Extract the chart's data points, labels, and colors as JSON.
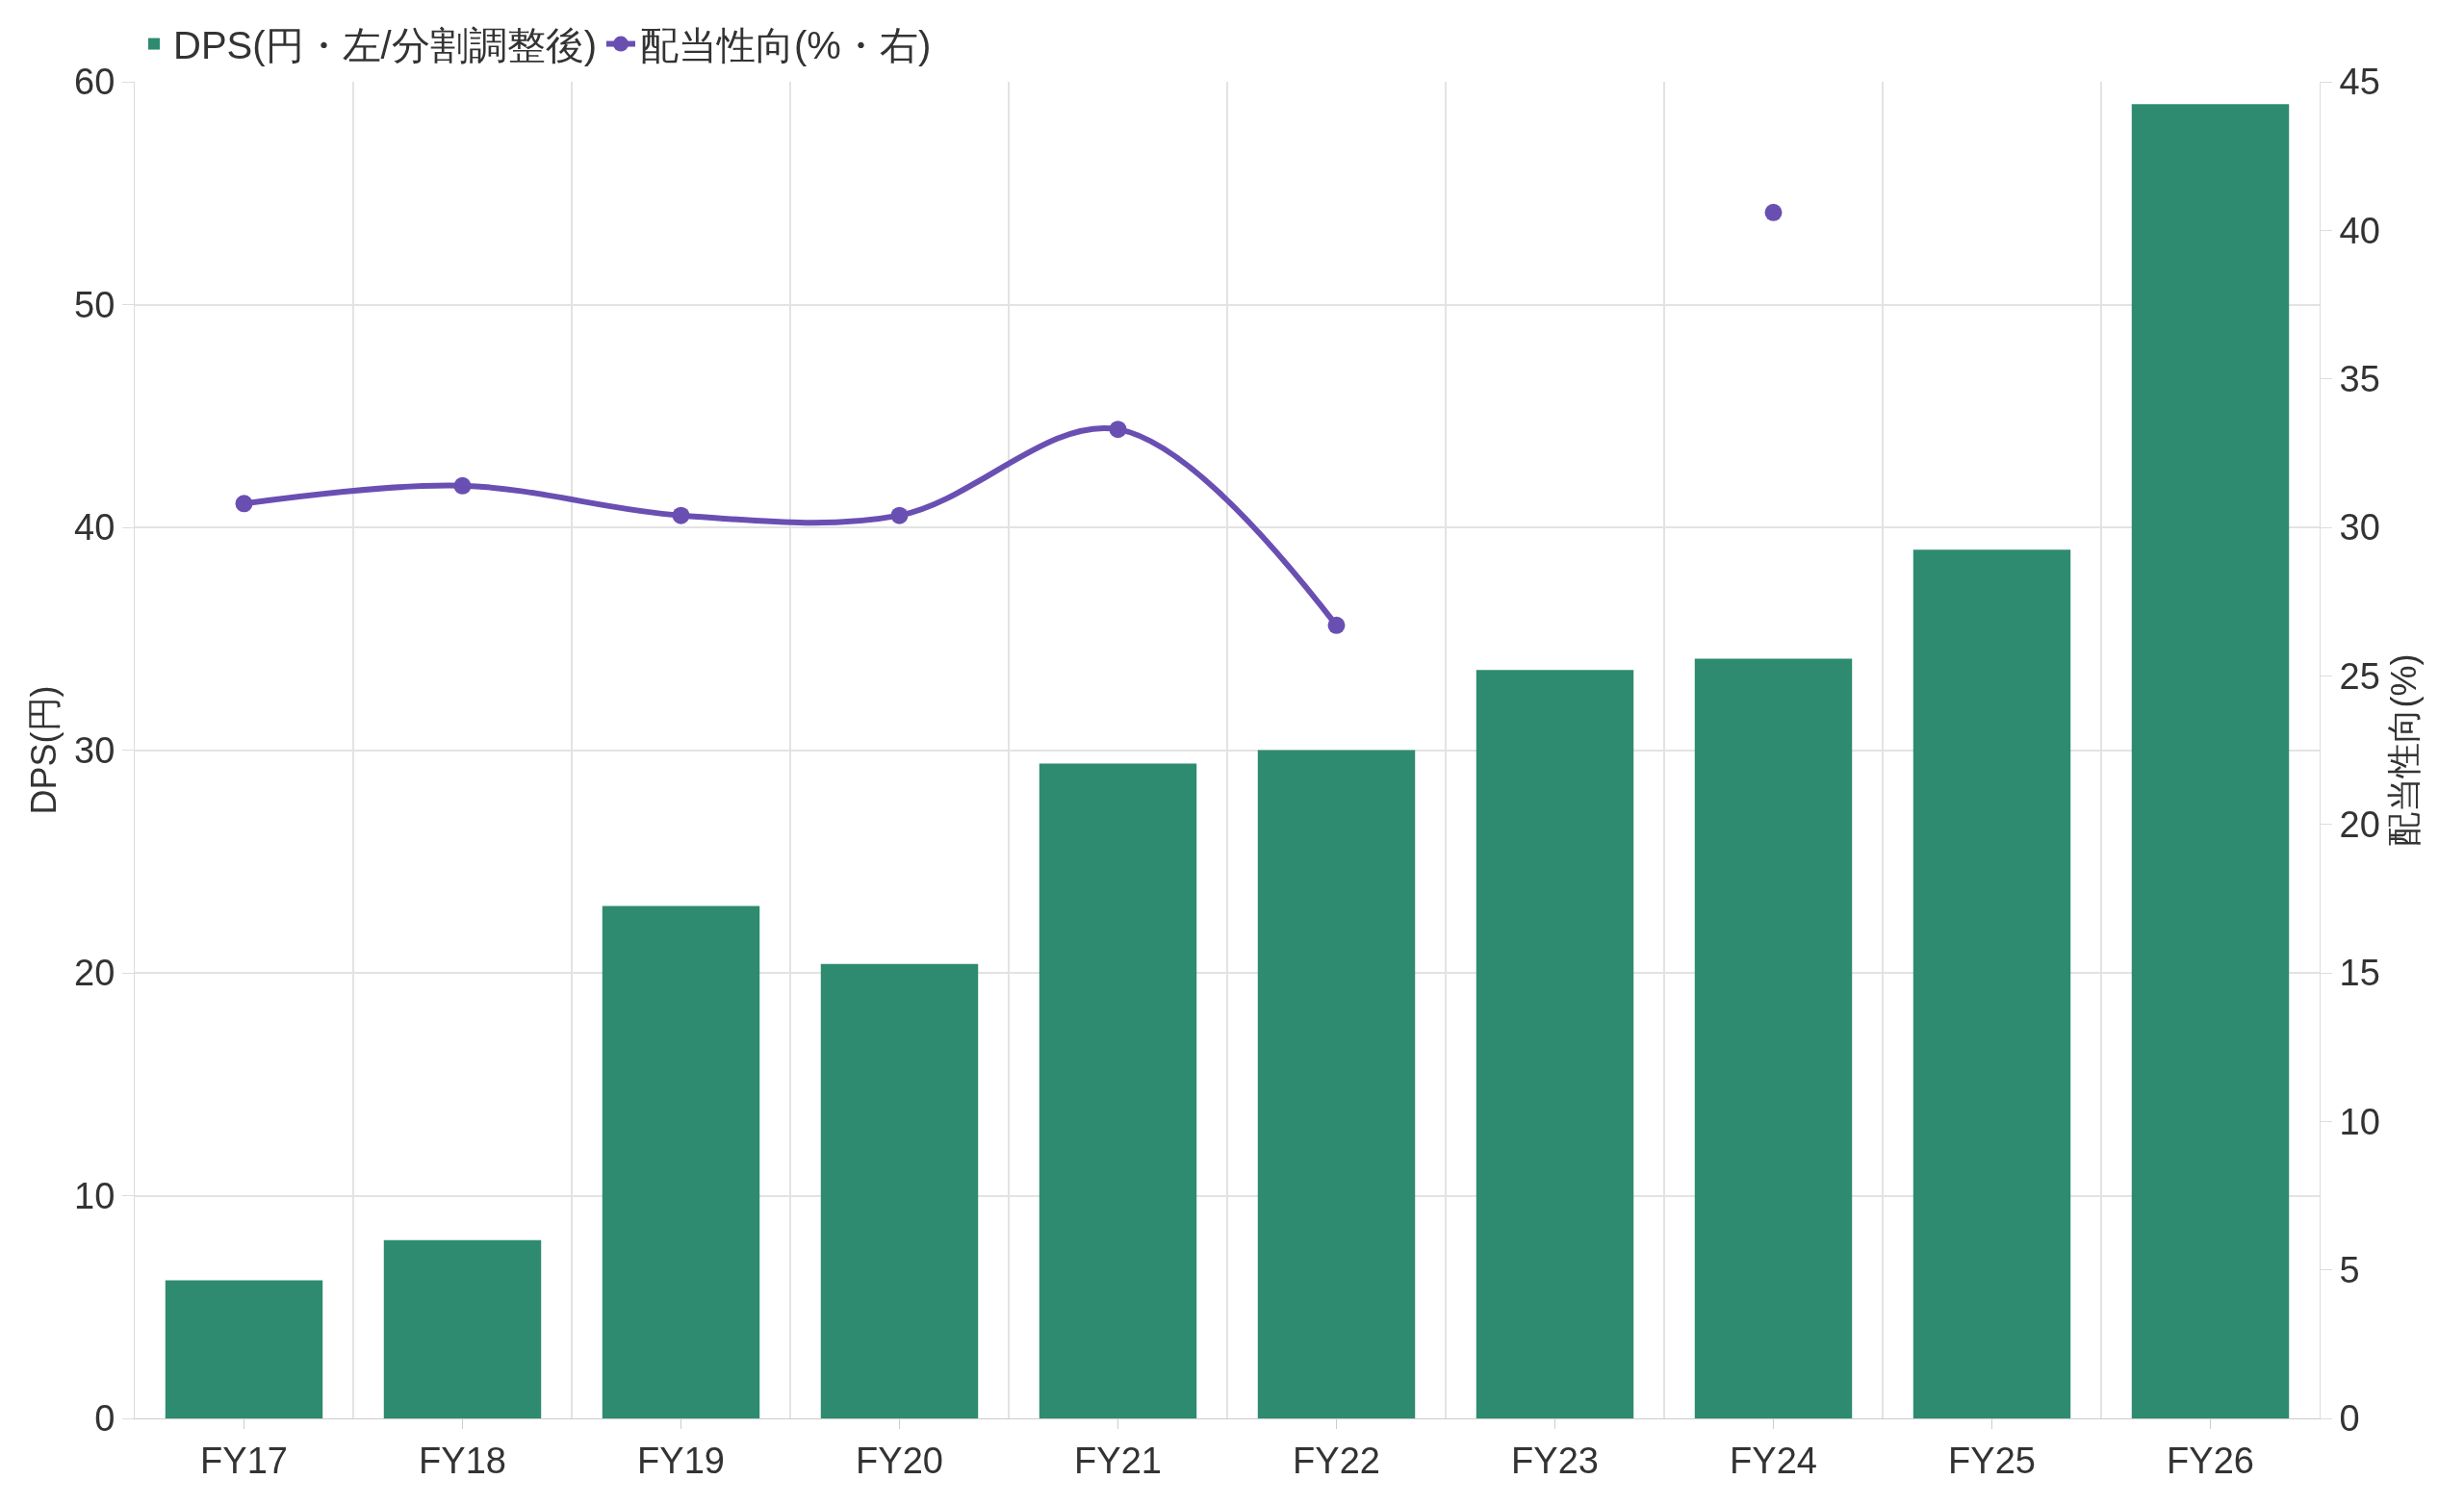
{
  "chart_data": {
    "type": "bar",
    "ylabel": "DPS(円)",
    "y2label": "配当性向(%)",
    "categories": [
      "FY17",
      "FY18",
      "FY19",
      "FY20",
      "FY21",
      "FY22",
      "FY23",
      "FY24",
      "FY25",
      "FY26"
    ],
    "series": [
      {
        "name": "DPS(円・左/分割調整後)",
        "color": "#2e8b6f",
        "values": [
          6.2,
          8.0,
          23,
          20.4,
          29.4,
          30,
          33.6,
          34.1,
          39,
          59
        ]
      },
      {
        "name": "配当性向(%・右)",
        "type": "line",
        "axis": "y2",
        "color": "#6a4fb3",
        "marker": "circle",
        "values": [
          30.8,
          31.4,
          30.4,
          30.4,
          33.3,
          26.7,
          null,
          40.6,
          null,
          null
        ]
      }
    ],
    "ylim": [
      0,
      60
    ],
    "yticks": [
      0,
      10,
      20,
      30,
      40,
      50,
      60
    ],
    "y2lim": [
      0,
      45
    ],
    "y2ticks": [
      0,
      5,
      10,
      15,
      20,
      25,
      30,
      35,
      40,
      45
    ],
    "grid": true,
    "legend": "top left"
  }
}
